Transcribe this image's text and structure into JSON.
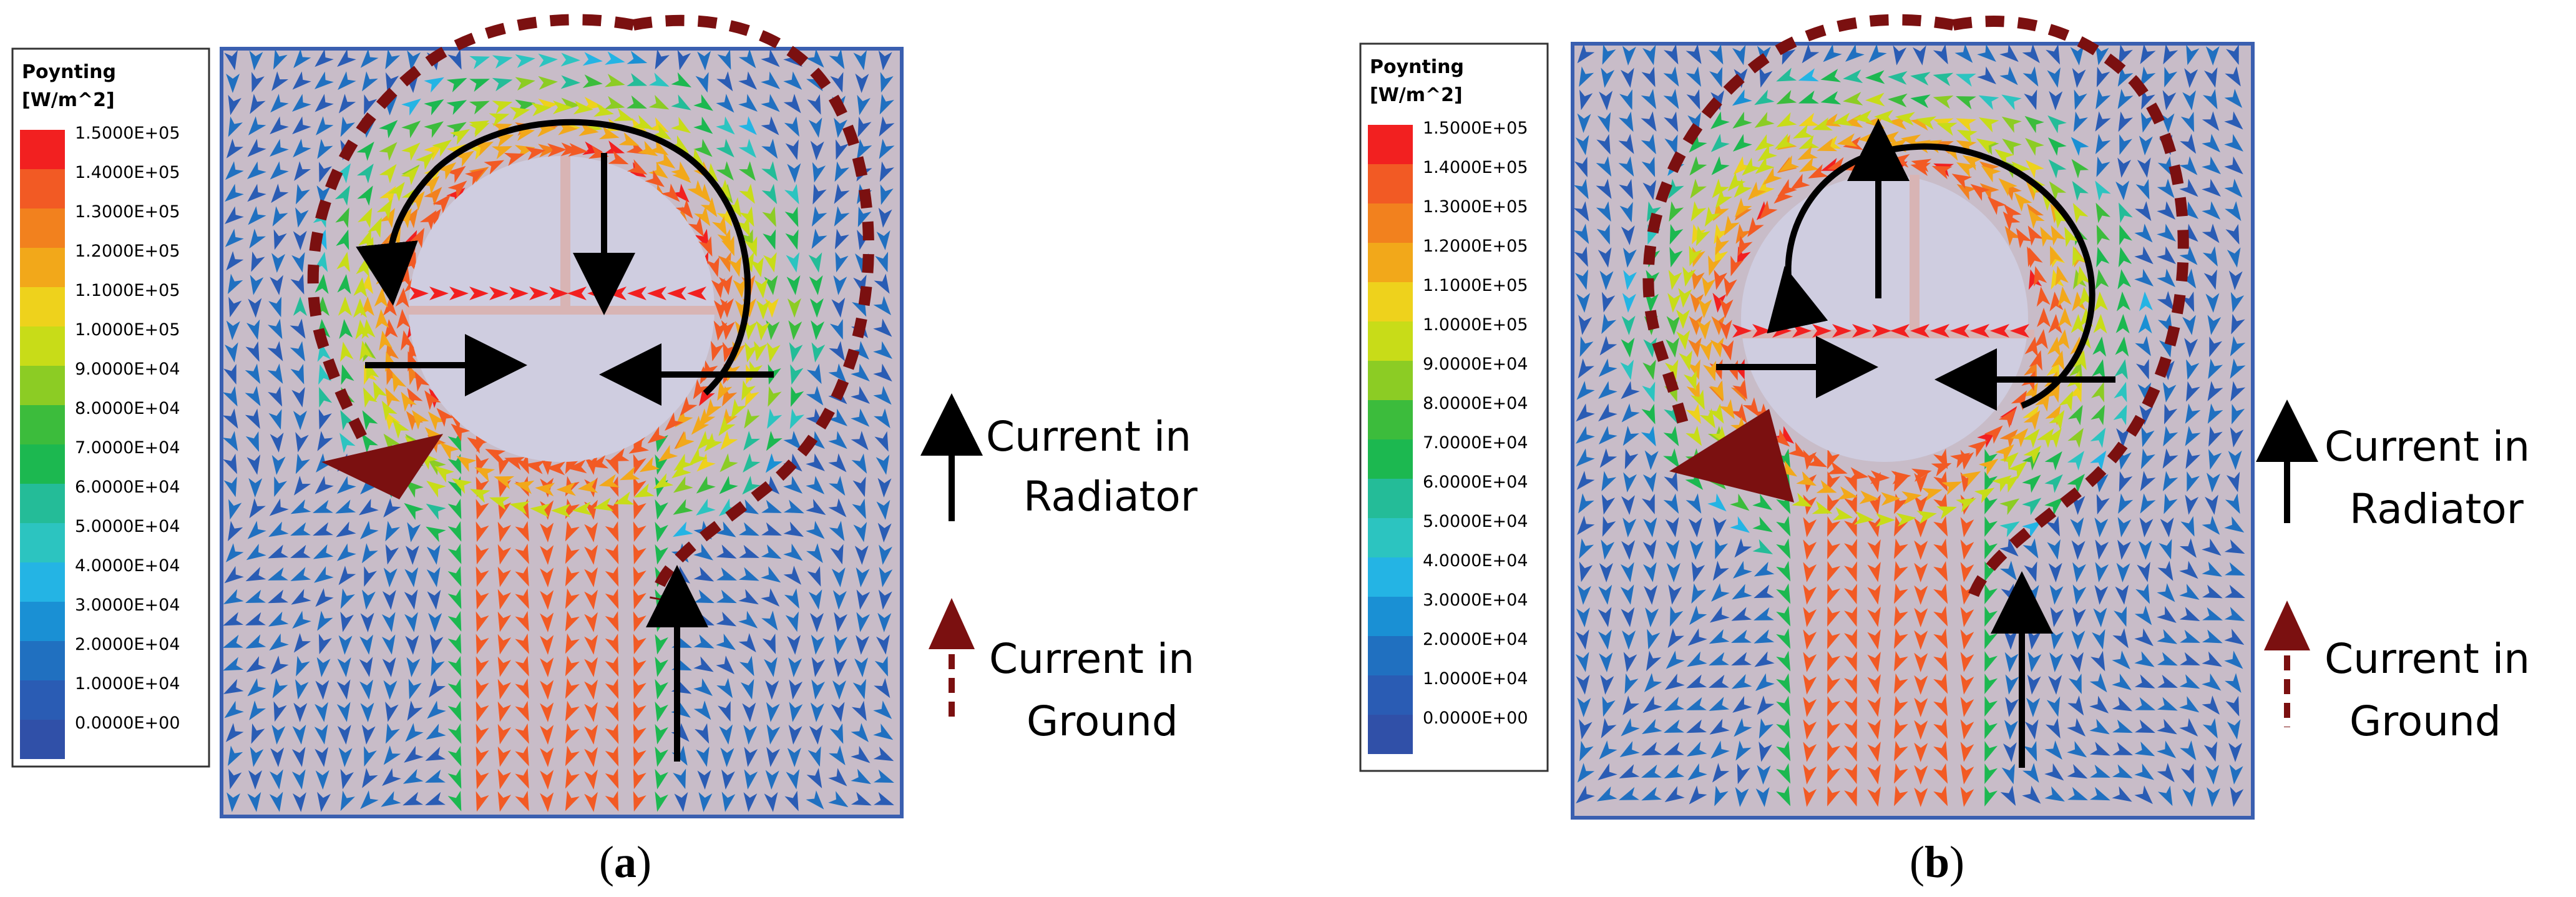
{
  "legend": {
    "title_line1": "Poynting",
    "title_line2": "[W/m^2]",
    "ticks": [
      "1.5000E+05",
      "1.4000E+05",
      "1.3000E+05",
      "1.2000E+05",
      "1.1000E+05",
      "1.0000E+05",
      "9.0000E+04",
      "8.0000E+04",
      "7.0000E+04",
      "6.0000E+04",
      "5.0000E+04",
      "4.0000E+04",
      "3.0000E+04",
      "2.0000E+04",
      "1.0000E+04",
      "0.0000E+00"
    ],
    "colors": [
      "#f22020",
      "#f25a24",
      "#f2811e",
      "#f2a81a",
      "#eed21c",
      "#c8dc18",
      "#8ccc24",
      "#3cbc3c",
      "#1cb850",
      "#24bc98",
      "#2cc4c0",
      "#24b4e4",
      "#1a90d4",
      "#2070c0",
      "#2a5cb4",
      "#3050a8"
    ]
  },
  "panels": [
    {
      "id": "a",
      "caption_open": "(",
      "caption_letter": "a",
      "caption_close": ")",
      "radiator_label_line1": "Current in",
      "radiator_label_line2": "Radiator",
      "ground_label_line1": "Current in",
      "ground_label_line2": "Ground",
      "vertical_arrow_direction": "down"
    },
    {
      "id": "b",
      "caption_open": "(",
      "caption_letter": "b",
      "caption_close": ")",
      "radiator_label_line1": "Current in",
      "radiator_label_line2": "Radiator",
      "ground_label_line1": "Current in",
      "ground_label_line2": "Ground",
      "vertical_arrow_direction": "up"
    }
  ],
  "field_colors": {
    "background": "#c8bcc8",
    "low": "#2f55b0",
    "high": "#f22020",
    "hole": "#cfcde0",
    "radiator_arrow": "#000000",
    "ground_arrow": "#7b1010"
  }
}
